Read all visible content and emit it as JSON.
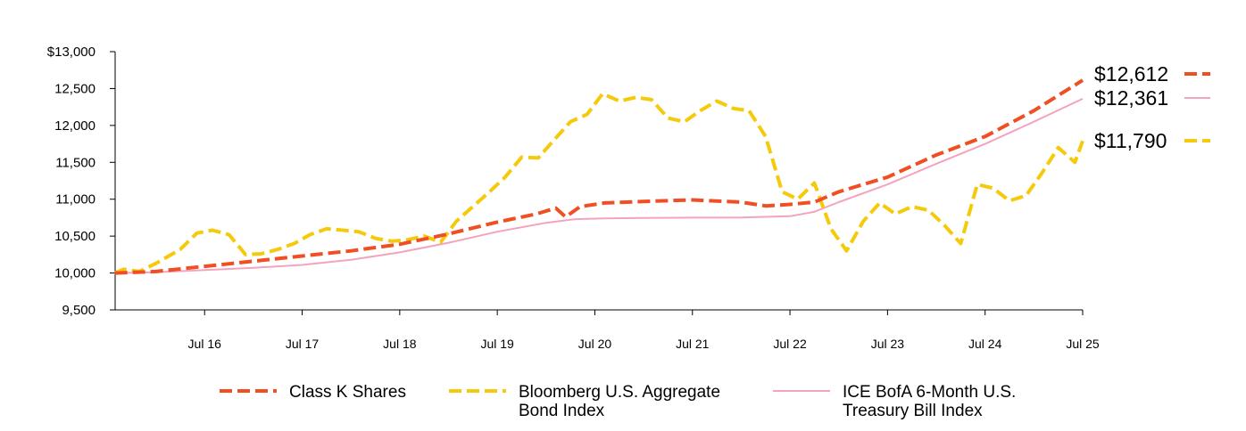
{
  "chart_data": {
    "type": "line",
    "ylim": [
      9500,
      13000
    ],
    "yticks": [
      "$13,000",
      "12,500",
      "12,000",
      "11,500",
      "11,000",
      "10,500",
      "10,000",
      "9,500"
    ],
    "ytick_values": [
      13000,
      12500,
      12000,
      11500,
      11000,
      10500,
      10000,
      9500
    ],
    "xlim": [
      2015.583,
      2025.5
    ],
    "xticks": [
      "Jul 16",
      "Jul 17",
      "Jul 18",
      "Jul 19",
      "Jul 20",
      "Jul 21",
      "Jul 22",
      "Jul 23",
      "Jul 24",
      "Jul 25"
    ],
    "xtick_values": [
      2016.5,
      2017.5,
      2018.5,
      2019.5,
      2020.5,
      2021.5,
      2022.5,
      2023.5,
      2024.5,
      2025.5
    ],
    "series": [
      {
        "name": "Class K Shares",
        "color": "#f04e23",
        "dash": "dashed",
        "end_label": "$12,612",
        "points": [
          [
            2015.58,
            10000
          ],
          [
            2016.0,
            10020
          ],
          [
            2016.5,
            10090
          ],
          [
            2017.0,
            10160
          ],
          [
            2017.5,
            10230
          ],
          [
            2018.0,
            10300
          ],
          [
            2018.5,
            10390
          ],
          [
            2019.0,
            10530
          ],
          [
            2019.5,
            10690
          ],
          [
            2019.9,
            10800
          ],
          [
            2020.1,
            10880
          ],
          [
            2020.2,
            10760
          ],
          [
            2020.35,
            10900
          ],
          [
            2020.6,
            10950
          ],
          [
            2021.0,
            10970
          ],
          [
            2021.5,
            10990
          ],
          [
            2022.0,
            10960
          ],
          [
            2022.25,
            10910
          ],
          [
            2022.5,
            10930
          ],
          [
            2022.75,
            10960
          ],
          [
            2023.0,
            11100
          ],
          [
            2023.5,
            11300
          ],
          [
            2024.0,
            11600
          ],
          [
            2024.5,
            11850
          ],
          [
            2025.0,
            12200
          ],
          [
            2025.5,
            12612
          ]
        ]
      },
      {
        "name": "Bloomberg U.S. Aggregate Bond Index",
        "color": "#f5ca0c",
        "dash": "dashed",
        "end_label": "$11,790",
        "points": [
          [
            2015.58,
            10000
          ],
          [
            2015.67,
            10050
          ],
          [
            2015.83,
            10020
          ],
          [
            2016.0,
            10130
          ],
          [
            2016.25,
            10320
          ],
          [
            2016.42,
            10540
          ],
          [
            2016.58,
            10580
          ],
          [
            2016.75,
            10520
          ],
          [
            2016.92,
            10250
          ],
          [
            2017.08,
            10260
          ],
          [
            2017.25,
            10320
          ],
          [
            2017.42,
            10400
          ],
          [
            2017.58,
            10520
          ],
          [
            2017.75,
            10600
          ],
          [
            2017.92,
            10580
          ],
          [
            2018.08,
            10560
          ],
          [
            2018.25,
            10470
          ],
          [
            2018.42,
            10430
          ],
          [
            2018.58,
            10450
          ],
          [
            2018.75,
            10500
          ],
          [
            2018.92,
            10420
          ],
          [
            2019.08,
            10700
          ],
          [
            2019.25,
            10900
          ],
          [
            2019.42,
            11100
          ],
          [
            2019.58,
            11300
          ],
          [
            2019.75,
            11570
          ],
          [
            2019.92,
            11560
          ],
          [
            2020.08,
            11800
          ],
          [
            2020.25,
            12050
          ],
          [
            2020.42,
            12150
          ],
          [
            2020.58,
            12430
          ],
          [
            2020.75,
            12330
          ],
          [
            2020.92,
            12380
          ],
          [
            2021.08,
            12350
          ],
          [
            2021.25,
            12100
          ],
          [
            2021.42,
            12050
          ],
          [
            2021.58,
            12200
          ],
          [
            2021.75,
            12330
          ],
          [
            2021.92,
            12230
          ],
          [
            2022.08,
            12200
          ],
          [
            2022.25,
            11850
          ],
          [
            2022.42,
            11100
          ],
          [
            2022.58,
            11000
          ],
          [
            2022.75,
            11220
          ],
          [
            2022.92,
            10600
          ],
          [
            2023.08,
            10300
          ],
          [
            2023.25,
            10700
          ],
          [
            2023.42,
            10950
          ],
          [
            2023.58,
            10800
          ],
          [
            2023.75,
            10900
          ],
          [
            2023.92,
            10850
          ],
          [
            2024.08,
            10650
          ],
          [
            2024.25,
            10400
          ],
          [
            2024.42,
            11200
          ],
          [
            2024.58,
            11150
          ],
          [
            2024.75,
            10980
          ],
          [
            2024.92,
            11050
          ],
          [
            2025.08,
            11350
          ],
          [
            2025.25,
            11700
          ],
          [
            2025.42,
            11500
          ],
          [
            2025.5,
            11790
          ]
        ]
      },
      {
        "name": "ICE BofA 6-Month U.S. Treasury Bill Index",
        "color": "#f4a3bf",
        "dash": "solid",
        "end_label": "$12,361",
        "points": [
          [
            2015.58,
            10000
          ],
          [
            2016.0,
            10010
          ],
          [
            2016.5,
            10040
          ],
          [
            2017.0,
            10070
          ],
          [
            2017.5,
            10110
          ],
          [
            2018.0,
            10180
          ],
          [
            2018.5,
            10280
          ],
          [
            2019.0,
            10410
          ],
          [
            2019.5,
            10560
          ],
          [
            2020.0,
            10680
          ],
          [
            2020.3,
            10730
          ],
          [
            2020.6,
            10740
          ],
          [
            2021.0,
            10745
          ],
          [
            2021.5,
            10750
          ],
          [
            2022.0,
            10752
          ],
          [
            2022.5,
            10770
          ],
          [
            2022.75,
            10830
          ],
          [
            2023.0,
            10960
          ],
          [
            2023.5,
            11200
          ],
          [
            2024.0,
            11480
          ],
          [
            2024.5,
            11750
          ],
          [
            2025.0,
            12050
          ],
          [
            2025.5,
            12361
          ]
        ]
      }
    ],
    "legend": [
      {
        "label": "Class K Shares",
        "color": "#f04e23",
        "dash": "dashed"
      },
      {
        "label": "Bloomberg U.S. Aggregate Bond Index",
        "color": "#f5ca0c",
        "dash": "dashed"
      },
      {
        "label": "ICE BofA 6-Month U.S. Treasury Bill Index",
        "color": "#f4a3bf",
        "dash": "solid"
      }
    ]
  }
}
